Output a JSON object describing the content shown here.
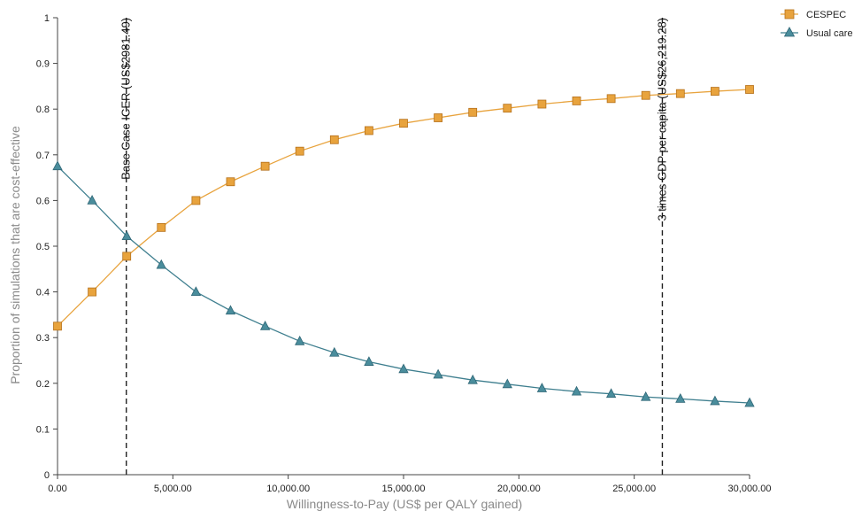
{
  "chart_data": {
    "type": "line",
    "xlabel": "Willingness-to-Pay (US$ per QALY gained)",
    "ylabel": "Proportion of simulations that are cost-effective",
    "xlim": [
      0,
      30000
    ],
    "ylim": [
      0,
      1
    ],
    "x_ticks": [
      0,
      5000,
      10000,
      15000,
      20000,
      25000,
      30000
    ],
    "x_tick_labels": [
      "0.00",
      "5,000.00",
      "10,000.00",
      "15,000.00",
      "20,000.00",
      "25,000.00",
      "30,000.00"
    ],
    "y_ticks": [
      0,
      0.1,
      0.2,
      0.3,
      0.4,
      0.5,
      0.6,
      0.7,
      0.8,
      0.9,
      1
    ],
    "y_tick_labels": [
      "0",
      "0.1",
      "0.2",
      "0.3",
      "0.4",
      "0.5",
      "0.6",
      "0.7",
      "0.8",
      "0.9",
      "1"
    ],
    "grid": false,
    "legend_position": "top-right",
    "x": [
      0,
      1500,
      3000,
      4500,
      6000,
      7500,
      9000,
      10500,
      12000,
      13500,
      15000,
      16500,
      18000,
      19500,
      21000,
      22500,
      24000,
      25500,
      27000,
      28500,
      30000
    ],
    "series": [
      {
        "name": "CESPEC",
        "marker": "square",
        "color": "#e8a33d",
        "marker_edge": "#b5701a",
        "values": [
          0.325,
          0.4,
          0.478,
          0.541,
          0.6,
          0.641,
          0.675,
          0.708,
          0.733,
          0.753,
          0.769,
          0.781,
          0.793,
          0.802,
          0.811,
          0.818,
          0.823,
          0.83,
          0.834,
          0.839,
          0.843
        ]
      },
      {
        "name": "Usual care",
        "marker": "triangle",
        "color": "#3f7f8f",
        "marker_edge": "#2f6676",
        "values": [
          0.675,
          0.6,
          0.522,
          0.459,
          0.4,
          0.359,
          0.325,
          0.292,
          0.267,
          0.247,
          0.231,
          0.219,
          0.207,
          0.198,
          0.189,
          0.182,
          0.177,
          0.17,
          0.166,
          0.161,
          0.157
        ]
      }
    ],
    "reference_lines": [
      {
        "x": 2981.49,
        "label": "Base Case ICER (US$2981.49)"
      },
      {
        "x": 26219.28,
        "label": "3 times GDP per capita (US$26,219.28)"
      }
    ]
  }
}
